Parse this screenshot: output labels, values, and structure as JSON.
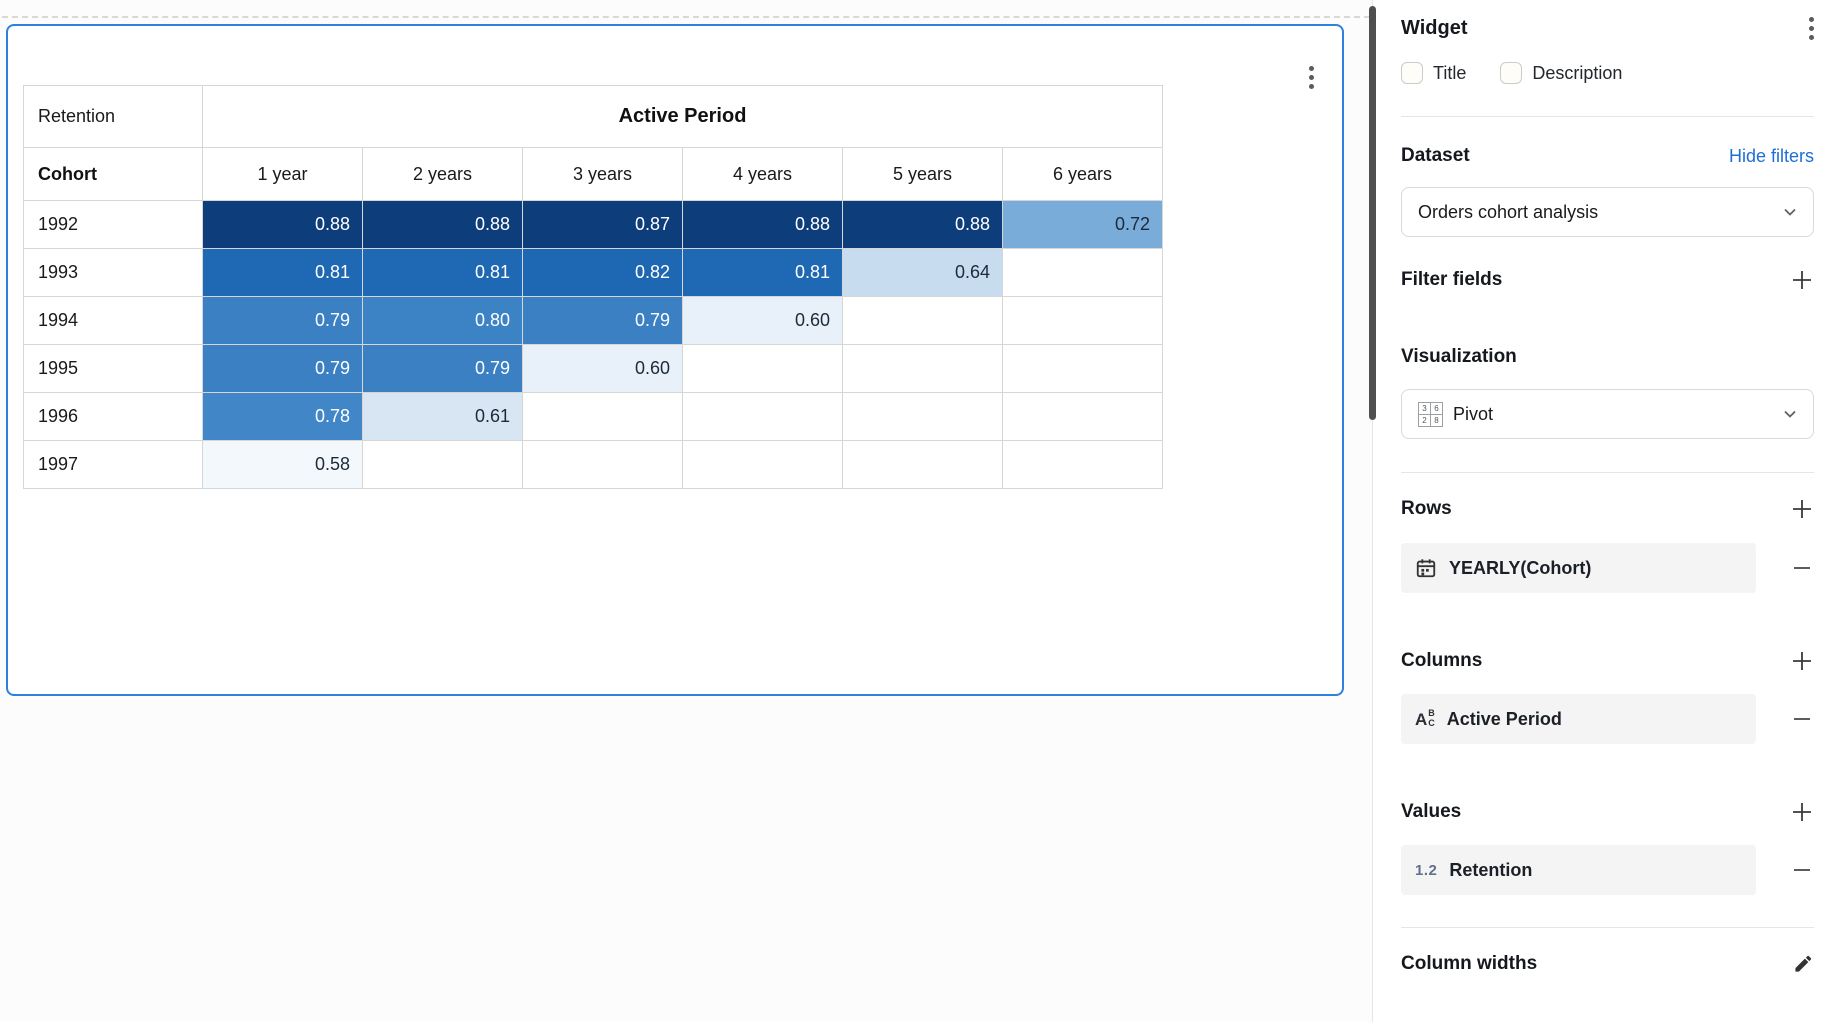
{
  "widget": {
    "pivot": {
      "corner_label": "Retention",
      "column_group_label": "Active Period",
      "row_dimension_label": "Cohort",
      "column_headers": [
        "1 year",
        "2 years",
        "3 years",
        "4 years",
        "5 years",
        "6 years"
      ],
      "rows": [
        {
          "cohort": "1992",
          "values": [
            "0.88",
            "0.88",
            "0.87",
            "0.88",
            "0.88",
            "0.72"
          ]
        },
        {
          "cohort": "1993",
          "values": [
            "0.81",
            "0.81",
            "0.82",
            "0.81",
            "0.64",
            ""
          ]
        },
        {
          "cohort": "1994",
          "values": [
            "0.79",
            "0.80",
            "0.79",
            "0.60",
            "",
            ""
          ]
        },
        {
          "cohort": "1995",
          "values": [
            "0.79",
            "0.79",
            "0.60",
            "",
            "",
            ""
          ]
        },
        {
          "cohort": "1996",
          "values": [
            "0.78",
            "0.61",
            "",
            "",
            "",
            ""
          ]
        },
        {
          "cohort": "1997",
          "values": [
            "0.58",
            "",
            "",
            "",
            "",
            ""
          ]
        }
      ],
      "heatmap": {
        "0.88": {
          "bg": "#0e3d7b",
          "fg": "#ffffff"
        },
        "0.87": {
          "bg": "#0e3d7b",
          "fg": "#ffffff"
        },
        "0.82": {
          "bg": "#1e67b2",
          "fg": "#ffffff"
        },
        "0.81": {
          "bg": "#1f68b3",
          "fg": "#ffffff"
        },
        "0.80": {
          "bg": "#3c83c5",
          "fg": "#ffffff"
        },
        "0.79": {
          "bg": "#3a80c3",
          "fg": "#ffffff"
        },
        "0.78": {
          "bg": "#4186c7",
          "fg": "#ffffff"
        },
        "0.72": {
          "bg": "#79acd9",
          "fg": "#1c2b3a"
        },
        "0.64": {
          "bg": "#c8dcef",
          "fg": "#1c2b3a"
        },
        "0.61": {
          "bg": "#d8e6f4",
          "fg": "#1c2b3a"
        },
        "0.60": {
          "bg": "#e8f0f9",
          "fg": "#1c2b3a"
        },
        "0.58": {
          "bg": "#f3f8fc",
          "fg": "#1c2b3a"
        }
      }
    }
  },
  "panel": {
    "title": "Widget",
    "title_checkbox": {
      "label": "Title",
      "checked": false
    },
    "description_checkbox": {
      "label": "Description",
      "checked": false
    },
    "dataset": {
      "heading": "Dataset",
      "link_label": "Hide filters",
      "selected": "Orders cohort analysis"
    },
    "filter_fields": {
      "heading": "Filter fields"
    },
    "visualization": {
      "heading": "Visualization",
      "selected": "Pivot"
    },
    "rows_section": {
      "heading": "Rows",
      "item_label": "YEARLY(Cohort)"
    },
    "columns_section": {
      "heading": "Columns",
      "item_label": "Active Period"
    },
    "values_section": {
      "heading": "Values",
      "item_label": "Retention"
    },
    "column_widths": {
      "heading": "Column widths"
    },
    "pivot_icon_digits": [
      "3",
      "6",
      "2",
      "8"
    ],
    "abc_icon_letters": [
      "A",
      "B",
      "C"
    ],
    "numeric_icon_text": "1.2"
  },
  "colors": {
    "widget_border": "#2f7fe0",
    "link": "#1d6fd6",
    "divider": "#e5e5e5",
    "item_background": "#f4f4f5"
  }
}
